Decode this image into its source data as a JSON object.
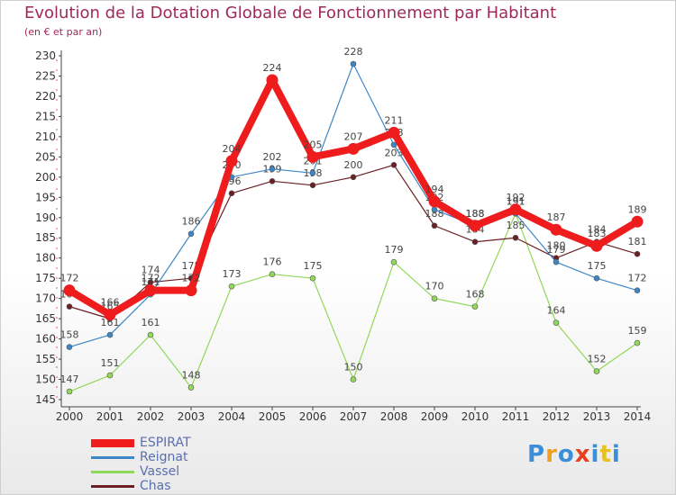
{
  "title": "Evolution de la Dotation Globale de Fonctionnement par Habitant",
  "subtitle": "(en € et par an)",
  "brand": "Proxiti",
  "chart_data": {
    "type": "line",
    "x": [
      "2000",
      "2001",
      "2002",
      "2003",
      "2004",
      "2005",
      "2006",
      "2007",
      "2008",
      "2009",
      "2010",
      "2011",
      "2012",
      "2013",
      "2014"
    ],
    "ylim": [
      145,
      230
    ],
    "yticks": [
      145,
      150,
      155,
      160,
      165,
      170,
      175,
      180,
      185,
      190,
      195,
      200,
      205,
      210,
      215,
      220,
      225,
      230
    ],
    "grid": false,
    "legend_position": "bottom-left",
    "series": [
      {
        "name": "Vassel",
        "color": "#90d85a",
        "values": [
          147,
          151,
          161,
          148,
          173,
          176,
          175,
          150,
          179,
          170,
          168,
          191,
          164,
          152,
          159
        ]
      },
      {
        "name": "Chas",
        "color": "#6b1f24",
        "values": [
          168,
          165,
          174,
          175,
          196,
          199,
          198,
          200,
          203,
          188,
          184,
          185,
          180,
          184,
          181
        ]
      },
      {
        "name": "Reignat",
        "color": "#3f86c5",
        "values": [
          158,
          161,
          171,
          186,
          200,
          202,
          201,
          228,
          208,
          192,
          188,
          191,
          179,
          175,
          172
        ]
      },
      {
        "name": "ESPIRAT",
        "color": "#ee1c1c",
        "values": [
          172,
          166,
          172,
          172,
          204,
          224,
          205,
          207,
          211,
          194,
          188,
          192,
          187,
          183,
          189
        ]
      }
    ],
    "legend_order": [
      "ESPIRAT",
      "Reignat",
      "Vassel",
      "Chas"
    ]
  }
}
